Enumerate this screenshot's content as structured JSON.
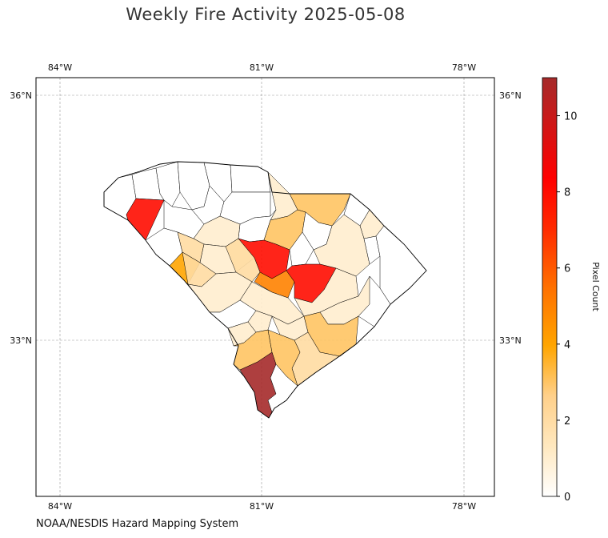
{
  "title": "Weekly Fire Activity 2025-05-08",
  "credit": "NOAA/NESDIS Hazard Mapping System",
  "colorbar": {
    "label": "Pixel Count",
    "min": 0,
    "max": 11,
    "ticks": [
      "0",
      "2",
      "4",
      "6",
      "8",
      "10"
    ],
    "colors": [
      "#ffffff",
      "#ffe8bf",
      "#ffc970",
      "#ffa500",
      "#ff7000",
      "#ff2000",
      "#ff0000",
      "#a52a2a"
    ]
  },
  "axes": {
    "lon_ticks": [
      "84°W",
      "81°W",
      "78°W"
    ],
    "lat_ticks": [
      "36°N",
      "33°N"
    ],
    "grid": true
  },
  "map": {
    "region": "South Carolina counties",
    "counties": [
      {
        "id": "oconee",
        "value": 0
      },
      {
        "id": "pickens",
        "value": 0
      },
      {
        "id": "greenville",
        "value": 0
      },
      {
        "id": "spartanburg",
        "value": 0
      },
      {
        "id": "cherokee",
        "value": 0
      },
      {
        "id": "york",
        "value": 0
      },
      {
        "id": "lancaster",
        "value": 1
      },
      {
        "id": "chesterfield",
        "value": 3
      },
      {
        "id": "marlboro",
        "value": 0
      },
      {
        "id": "anderson",
        "value": 8
      },
      {
        "id": "laurens",
        "value": 0
      },
      {
        "id": "union",
        "value": 0
      },
      {
        "id": "chester",
        "value": 0
      },
      {
        "id": "fairfield",
        "value": 0
      },
      {
        "id": "kershaw",
        "value": 3
      },
      {
        "id": "darlington",
        "value": 0
      },
      {
        "id": "dillon",
        "value": 1
      },
      {
        "id": "abbeville",
        "value": 0
      },
      {
        "id": "greenwood",
        "value": 2
      },
      {
        "id": "newberry",
        "value": 1
      },
      {
        "id": "richland",
        "value": 8
      },
      {
        "id": "lee",
        "value": 0
      },
      {
        "id": "florence",
        "value": 1
      },
      {
        "id": "marion",
        "value": 0
      },
      {
        "id": "horry",
        "value": 0
      },
      {
        "id": "mccormick",
        "value": 4
      },
      {
        "id": "saluda",
        "value": 1
      },
      {
        "id": "lexington",
        "value": 2
      },
      {
        "id": "edgefield",
        "value": 2
      },
      {
        "id": "calhoun",
        "value": 5
      },
      {
        "id": "sumter",
        "value": 8
      },
      {
        "id": "clarendon",
        "value": 1
      },
      {
        "id": "williamsburg",
        "value": 1
      },
      {
        "id": "georgetown",
        "value": 0
      },
      {
        "id": "aiken",
        "value": 1
      },
      {
        "id": "orangeburg",
        "value": 1
      },
      {
        "id": "barnwell",
        "value": 0
      },
      {
        "id": "bamberg",
        "value": 1
      },
      {
        "id": "dorchester",
        "value": 1
      },
      {
        "id": "berkeley",
        "value": 3
      },
      {
        "id": "charleston",
        "value": 2
      },
      {
        "id": "allendale",
        "value": 1
      },
      {
        "id": "hampton",
        "value": 3
      },
      {
        "id": "colleton",
        "value": 3
      },
      {
        "id": "jasper",
        "value": 11
      },
      {
        "id": "beaufort",
        "value": 0
      }
    ]
  }
}
